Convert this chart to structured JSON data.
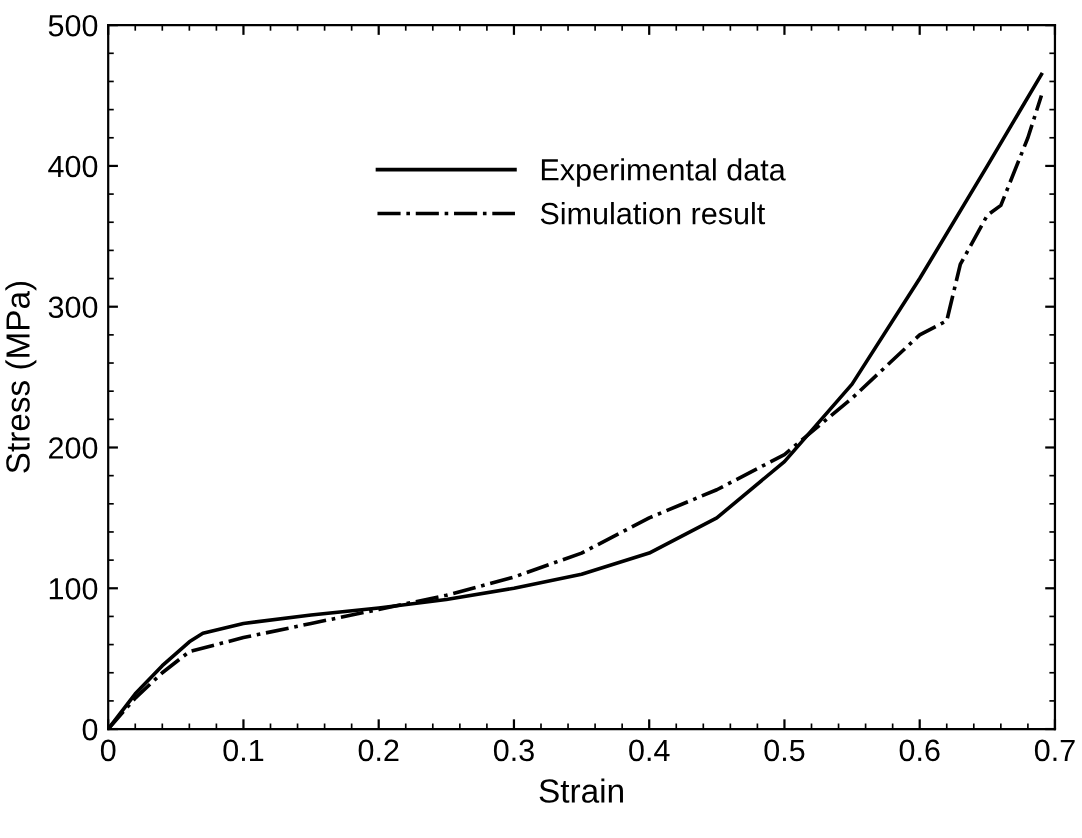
{
  "chart_data": {
    "type": "line",
    "xlabel": "Strain",
    "ylabel": "Stress (MPa)",
    "xlim": [
      0,
      0.7
    ],
    "ylim": [
      0,
      500
    ],
    "xticks": [
      0,
      0.1,
      0.2,
      0.3,
      0.4,
      0.5,
      0.6,
      0.7
    ],
    "yticks": [
      0,
      100,
      200,
      300,
      400,
      500
    ],
    "grid": false,
    "legend": "top",
    "series": [
      {
        "name": "Experimental data",
        "color": "#000000",
        "line_style": "solid",
        "x": [
          0,
          0.02,
          0.04,
          0.06,
          0.07,
          0.1,
          0.15,
          0.2,
          0.25,
          0.3,
          0.35,
          0.4,
          0.45,
          0.5,
          0.55,
          0.6,
          0.65,
          0.69
        ],
        "values": [
          0,
          25,
          45,
          62,
          68,
          75,
          81,
          86,
          92,
          100,
          110,
          125,
          150,
          190,
          245,
          320,
          400,
          465
        ]
      },
      {
        "name": "Simulation result",
        "color": "#000000",
        "line_style": "dashdot",
        "x": [
          0,
          0.02,
          0.04,
          0.06,
          0.08,
          0.1,
          0.15,
          0.2,
          0.25,
          0.3,
          0.35,
          0.4,
          0.45,
          0.5,
          0.55,
          0.6,
          0.62,
          0.63,
          0.65,
          0.66,
          0.68,
          0.69
        ],
        "values": [
          0,
          22,
          40,
          55,
          60,
          65,
          75,
          85,
          95,
          108,
          125,
          150,
          170,
          195,
          235,
          280,
          290,
          330,
          365,
          372,
          420,
          450
        ]
      }
    ]
  }
}
